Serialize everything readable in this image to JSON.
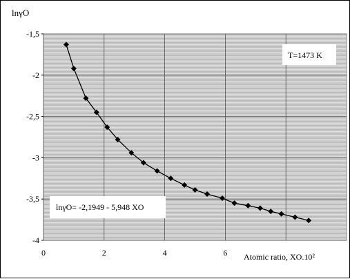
{
  "chart_data": {
    "type": "line",
    "title": "",
    "ylabel": "lnγO",
    "xlabel": "Atomic ratio, XO.10²",
    "xlim": [
      0,
      10
    ],
    "ylim": [
      -4,
      -1.5
    ],
    "x_ticks": [
      0,
      2,
      4,
      6
    ],
    "x_tick_labels": [
      "0",
      "2",
      "4",
      "6"
    ],
    "y_ticks": [
      -4,
      -3.5,
      -3,
      -2.5,
      -2,
      -1.5
    ],
    "y_tick_labels": [
      "-4",
      "-3,5",
      "-3",
      "-2,5",
      "-2",
      "-1,5"
    ],
    "grid": true,
    "annotations": {
      "temperature": "T=1473 K",
      "equation": "lnγO= -2,1949 - 5,948 XO"
    },
    "series": [
      {
        "marker": "diamond",
        "x": [
          0.75,
          1.0,
          1.4,
          1.75,
          2.1,
          2.45,
          2.9,
          3.3,
          3.75,
          4.2,
          4.65,
          5.0,
          5.4,
          5.9,
          6.3,
          6.75,
          7.15,
          7.5,
          7.85,
          8.3,
          8.75
        ],
        "y": [
          -1.63,
          -1.92,
          -2.28,
          -2.45,
          -2.63,
          -2.78,
          -2.94,
          -3.06,
          -3.16,
          -3.25,
          -3.33,
          -3.39,
          -3.44,
          -3.49,
          -3.55,
          -3.58,
          -3.61,
          -3.65,
          -3.68,
          -3.72,
          -3.76
        ]
      }
    ]
  }
}
